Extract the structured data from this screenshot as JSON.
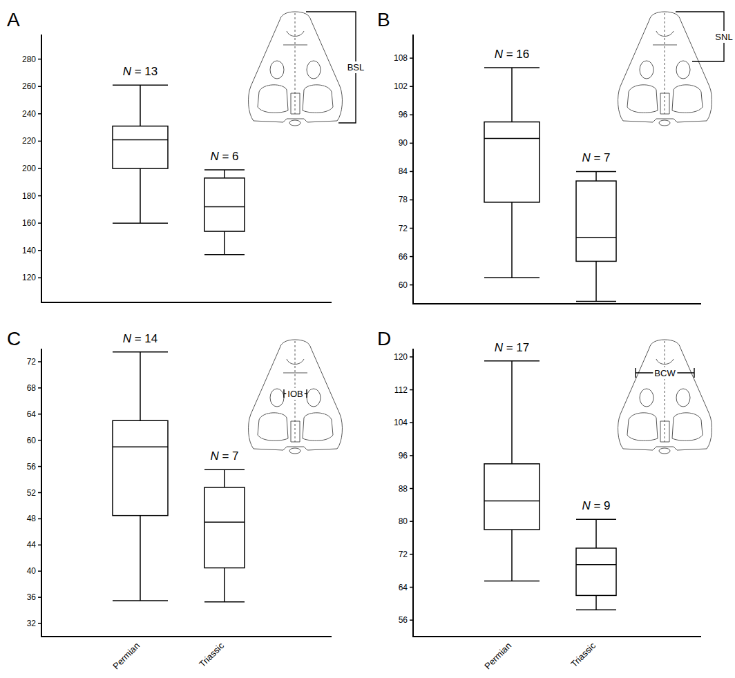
{
  "chart_data": [
    {
      "type": "box",
      "panel_label": "A",
      "measurement": "BSL",
      "categories": [
        "Permian",
        "Triassic"
      ],
      "n_labels": [
        "N = 13",
        "N = 6"
      ],
      "boxes": [
        {
          "min": 160,
          "q1": 200,
          "median": 221,
          "q3": 231,
          "max": 261
        },
        {
          "min": 137,
          "q1": 154,
          "median": 172,
          "q3": 193,
          "max": 199
        }
      ],
      "ylim": [
        102,
        298
      ],
      "yticks": [
        120,
        140,
        160,
        180,
        200,
        220,
        240,
        260,
        280
      ],
      "tick_labels": "y"
    },
    {
      "type": "box",
      "panel_label": "B",
      "measurement": "SNL",
      "categories": [
        "Permian",
        "Triassic"
      ],
      "n_labels": [
        "N = 16",
        "N = 7"
      ],
      "boxes": [
        {
          "min": 61.5,
          "q1": 77.5,
          "median": 91,
          "q3": 94.5,
          "max": 106
        },
        {
          "min": 56.5,
          "q1": 65,
          "median": 70,
          "q3": 82,
          "max": 84
        }
      ],
      "ylim": [
        56,
        113
      ],
      "yticks": [
        60,
        66,
        72,
        78,
        84,
        90,
        96,
        102,
        108
      ],
      "tick_labels": "y"
    },
    {
      "type": "box",
      "panel_label": "C",
      "measurement": "IOB",
      "categories": [
        "Permian",
        "Triassic"
      ],
      "n_labels": [
        "N = 14",
        "N = 7"
      ],
      "boxes": [
        {
          "min": 35.5,
          "q1": 48.5,
          "median": 59,
          "q3": 63,
          "max": 73.5
        },
        {
          "min": 35.3,
          "q1": 40.5,
          "median": 47.5,
          "q3": 52.8,
          "max": 55.5
        }
      ],
      "ylim": [
        30,
        74
      ],
      "yticks": [
        32,
        36,
        40,
        44,
        48,
        52,
        56,
        60,
        64,
        68,
        72
      ]
    },
    {
      "type": "box",
      "panel_label": "D",
      "measurement": "BCW",
      "categories": [
        "Permian",
        "Triassic"
      ],
      "n_labels": [
        "N = 17",
        "N = 9"
      ],
      "boxes": [
        {
          "min": 65.5,
          "q1": 78,
          "median": 85,
          "q3": 94,
          "max": 119
        },
        {
          "min": 58.5,
          "q1": 62,
          "median": 69.5,
          "q3": 73.5,
          "max": 80.5
        }
      ],
      "ylim": [
        52,
        122
      ],
      "yticks": [
        56,
        64,
        72,
        80,
        88,
        96,
        104,
        112,
        120
      ]
    }
  ]
}
